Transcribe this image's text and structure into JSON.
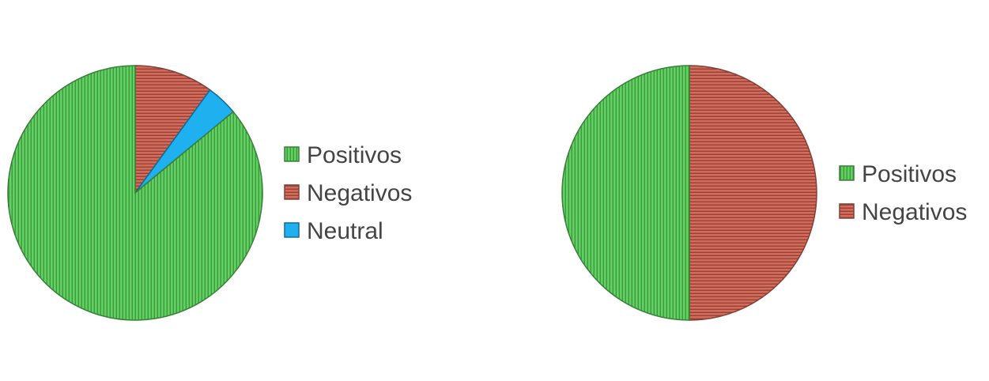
{
  "chart_data": [
    {
      "type": "pie",
      "title": "",
      "categories": [
        "Positivos",
        "Negativos",
        "Neutral"
      ],
      "values": [
        86,
        10,
        4
      ],
      "colors": [
        "#5fd35f",
        "#d86a5a",
        "#1fb0f0"
      ],
      "patterns": [
        "vertical-lines",
        "horizontal-lines",
        "solid"
      ],
      "legend_position": "right"
    },
    {
      "type": "pie",
      "title": "",
      "categories": [
        "Positivos",
        "Negativos"
      ],
      "values": [
        50,
        50
      ],
      "colors": [
        "#5fd35f",
        "#d86a5a"
      ],
      "patterns": [
        "vertical-lines",
        "horizontal-lines"
      ],
      "legend_position": "right"
    }
  ]
}
